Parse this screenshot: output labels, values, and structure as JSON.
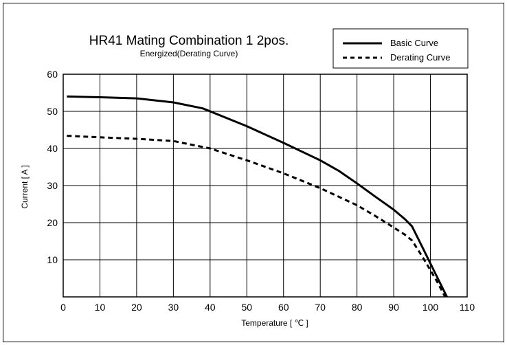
{
  "chart_data": {
    "type": "line",
    "title": "HR41 Mating Combination 1 2pos.",
    "subtitle": "Energized(Derating Curve)",
    "xlabel": "Temperature [ ℃ ]",
    "ylabel": "Current [ A ]",
    "xlim": [
      0,
      110
    ],
    "ylim": [
      0,
      60
    ],
    "xticks": [
      0,
      10,
      20,
      30,
      40,
      50,
      60,
      70,
      80,
      90,
      100,
      110
    ],
    "yticks": [
      10,
      20,
      30,
      40,
      50,
      60
    ],
    "grid": true,
    "legend_position": "top-right",
    "series": [
      {
        "name": "Basic Curve",
        "style": "solid",
        "color": "#000000",
        "points": [
          [
            1,
            54
          ],
          [
            10,
            53.8
          ],
          [
            20,
            53.5
          ],
          [
            30,
            52.4
          ],
          [
            38,
            50.8
          ],
          [
            50,
            46
          ],
          [
            60,
            41.5
          ],
          [
            70,
            36.8
          ],
          [
            75,
            34
          ],
          [
            80,
            30.6
          ],
          [
            85,
            27
          ],
          [
            90,
            23.5
          ],
          [
            93,
            21
          ],
          [
            95,
            19
          ],
          [
            98,
            13
          ],
          [
            100,
            9
          ],
          [
            102,
            5
          ],
          [
            104.5,
            0
          ]
        ]
      },
      {
        "name": "Derating Curve",
        "style": "dashed",
        "color": "#000000",
        "points": [
          [
            1,
            43.4
          ],
          [
            10,
            43
          ],
          [
            20,
            42.6
          ],
          [
            30,
            42
          ],
          [
            40,
            40
          ],
          [
            50,
            36.8
          ],
          [
            60,
            33.3
          ],
          [
            70,
            29.3
          ],
          [
            75,
            27
          ],
          [
            80,
            24.7
          ],
          [
            85,
            21.8
          ],
          [
            90,
            18.7
          ],
          [
            93,
            16.8
          ],
          [
            95,
            15.2
          ],
          [
            98,
            10.5
          ],
          [
            100,
            7.2
          ],
          [
            102,
            3.8
          ],
          [
            104,
            0
          ]
        ]
      }
    ]
  }
}
